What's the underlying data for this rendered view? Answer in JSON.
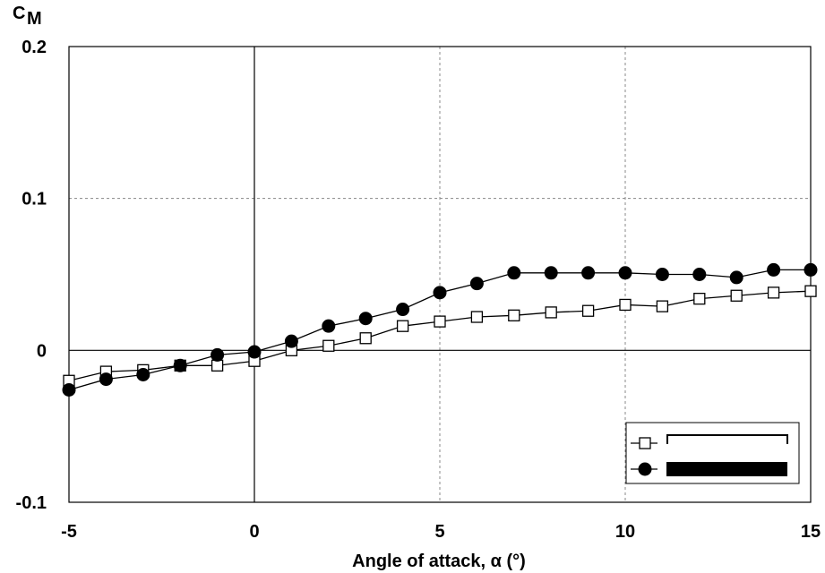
{
  "chart_data": {
    "type": "line",
    "title": "",
    "xlabel": "Angle of attack, α (°)",
    "ylabel_main": "C",
    "ylabel_sub": "M",
    "xlim": [
      -5,
      15
    ],
    "ylim": [
      -0.1,
      0.2
    ],
    "xticks": [
      -5,
      0,
      5,
      10,
      15
    ],
    "xtick_labels": [
      "-5",
      "0",
      "5",
      "10",
      "15"
    ],
    "yticks": [
      -0.1,
      0,
      0.1,
      0.2
    ],
    "ytick_labels": [
      "-0.1",
      "0",
      "0.1",
      "0.2"
    ],
    "grid": true,
    "legend_placement": "bottom-right",
    "series": [
      {
        "marker": "open-square",
        "legend_swatch": "open-bracket",
        "x": [
          -5,
          -4,
          -3,
          -2,
          -1,
          0,
          1,
          2,
          3,
          4,
          5,
          6,
          7,
          8,
          9,
          10,
          11,
          12,
          13,
          14,
          15
        ],
        "values": [
          -0.02,
          -0.014,
          -0.013,
          -0.01,
          -0.01,
          -0.007,
          0.0,
          0.003,
          0.008,
          0.016,
          0.019,
          0.022,
          0.023,
          0.025,
          0.026,
          0.03,
          0.029,
          0.034,
          0.036,
          0.038,
          0.039
        ]
      },
      {
        "marker": "filled-circle",
        "legend_swatch": "filled-bar",
        "x": [
          -5,
          -4,
          -3,
          -2,
          -1,
          0,
          1,
          2,
          3,
          4,
          5,
          6,
          7,
          8,
          9,
          10,
          11,
          12,
          13,
          14,
          15
        ],
        "values": [
          -0.026,
          -0.019,
          -0.016,
          -0.01,
          -0.003,
          -0.001,
          0.006,
          0.016,
          0.021,
          0.027,
          0.038,
          0.044,
          0.051,
          0.051,
          0.051,
          0.051,
          0.05,
          0.05,
          0.048,
          0.053,
          0.053
        ]
      }
    ]
  }
}
